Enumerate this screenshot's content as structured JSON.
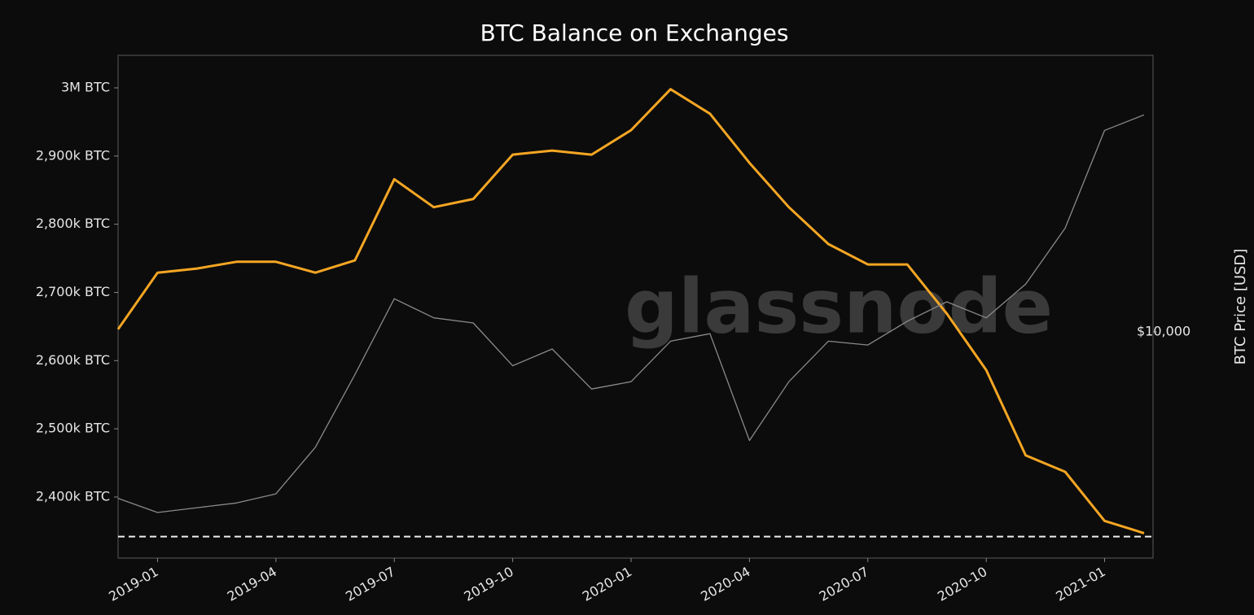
{
  "chart_data": {
    "type": "line",
    "title": "BTC Balance on Exchanges",
    "watermark": "glassnode",
    "y2label": "BTC Price [USD]",
    "x": [
      "2018-12",
      "2019-01",
      "2019-02",
      "2019-03",
      "2019-04",
      "2019-05",
      "2019-06",
      "2019-07",
      "2019-08",
      "2019-09",
      "2019-10",
      "2019-11",
      "2019-12",
      "2020-01",
      "2020-02",
      "2020-03",
      "2020-04",
      "2020-05",
      "2020-06",
      "2020-07",
      "2020-08",
      "2020-09",
      "2020-10",
      "2020-11",
      "2020-12",
      "2021-01",
      "2021-02"
    ],
    "series": [
      {
        "name": "BTC Balance on Exchanges",
        "color": "#f5a623",
        "axis": "y",
        "values": [
          2646000,
          2729000,
          2735000,
          2745000,
          2745000,
          2729000,
          2747000,
          2866000,
          2825000,
          2837000,
          2902000,
          2908000,
          2902000,
          2938000,
          2998000,
          2962000,
          2890000,
          2825000,
          2771000,
          2741000,
          2741000,
          2669000,
          2586000,
          2461000,
          2437000,
          2365000,
          2347000
        ]
      },
      {
        "name": "BTC Price",
        "color": "#8a8a8a",
        "axis": "y2",
        "values": [
          4000,
          3700,
          3800,
          3900,
          4100,
          5300,
          7900,
          12000,
          10800,
          10500,
          8300,
          9100,
          7300,
          7600,
          9500,
          9900,
          5500,
          7600,
          9500,
          9300,
          10600,
          11800,
          10800,
          13000,
          17700,
          30300,
          33000
        ]
      }
    ],
    "reference_line": 2342000,
    "xlim": [
      "2018-12",
      "2021-02"
    ],
    "xticks": [
      "2019-01",
      "2019-04",
      "2019-07",
      "2019-10",
      "2020-01",
      "2020-04",
      "2020-07",
      "2020-10",
      "2021-01"
    ],
    "ylim": [
      2310500,
      3047700
    ],
    "yticks": [
      {
        "value": 2400000,
        "label": "2,400k BTC"
      },
      {
        "value": 2500000,
        "label": "2,500k BTC"
      },
      {
        "value": 2600000,
        "label": "2,600k BTC"
      },
      {
        "value": 2700000,
        "label": "2,700k BTC"
      },
      {
        "value": 2800000,
        "label": "2,800k BTC"
      },
      {
        "value": 2900000,
        "label": "2,900k BTC"
      },
      {
        "value": 3000000,
        "label": "3M BTC"
      }
    ],
    "y2lim": [
      2880,
      45800
    ],
    "y2ticks": [
      {
        "value": 10000,
        "label": "$10,000"
      }
    ],
    "y2log": true,
    "grid": false
  }
}
